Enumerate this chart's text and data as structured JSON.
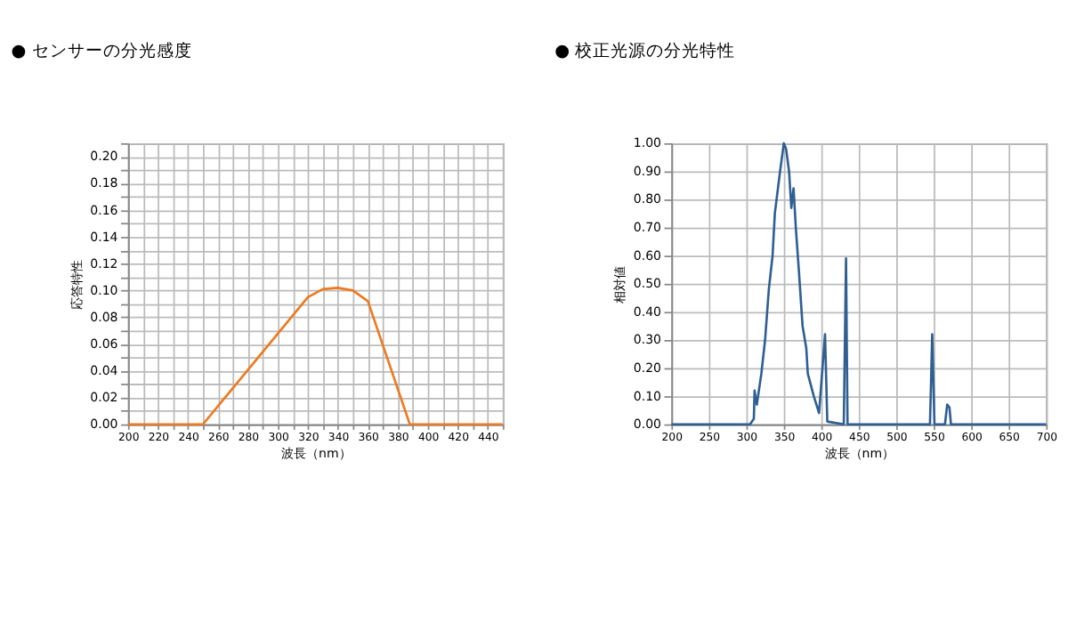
{
  "chart_data": [
    {
      "type": "line",
      "title": "● センサーの分光感度",
      "xlabel": "波長（nm）",
      "ylabel": "応答特性",
      "color": "#ee7a1f",
      "x": [
        200,
        250,
        320,
        330,
        340,
        350,
        360,
        388,
        450
      ],
      "values": [
        0,
        0,
        0.095,
        0.101,
        0.102,
        0.1,
        0.092,
        0,
        0
      ],
      "xlim": [
        200,
        450
      ],
      "ylim": [
        0,
        0.21
      ],
      "xticks": [
        200,
        {
          "value": 210,
          "label": null
        },
        220,
        {
          "value": 230,
          "label": null
        },
        240,
        {
          "value": 250,
          "label": null
        },
        260,
        {
          "value": 270,
          "label": null
        },
        280,
        {
          "value": 290,
          "label": null
        },
        300,
        {
          "value": 310,
          "label": null
        },
        320,
        {
          "value": 330,
          "label": null
        },
        340,
        {
          "value": 350,
          "label": null
        },
        360,
        {
          "value": 370,
          "label": null
        },
        380,
        {
          "value": 390,
          "label": null
        },
        400,
        {
          "value": 410,
          "label": null
        },
        420,
        {
          "value": 430,
          "label": null
        },
        440,
        {
          "value": 450,
          "label": null
        }
      ],
      "yticks": [
        {
          "value": 0,
          "label": "0.00"
        },
        {
          "value": 0.01,
          "label": null
        },
        {
          "value": 0.02,
          "label": "0.02"
        },
        {
          "value": 0.03,
          "label": null
        },
        {
          "value": 0.04,
          "label": "0.04"
        },
        {
          "value": 0.05,
          "label": null
        },
        {
          "value": 0.06,
          "label": "0.06"
        },
        {
          "value": 0.07,
          "label": null
        },
        {
          "value": 0.08,
          "label": "0.08"
        },
        {
          "value": 0.09,
          "label": null
        },
        {
          "value": 0.1,
          "label": "0.10"
        },
        {
          "value": 0.11,
          "label": null
        },
        {
          "value": 0.12,
          "label": "0.12"
        },
        {
          "value": 0.13,
          "label": null
        },
        {
          "value": 0.14,
          "label": "0.14"
        },
        {
          "value": 0.15,
          "label": null
        },
        {
          "value": 0.16,
          "label": "0.16"
        },
        {
          "value": 0.17,
          "label": null
        },
        {
          "value": 0.18,
          "label": "0.18"
        },
        {
          "value": 0.19,
          "label": null
        },
        {
          "value": 0.2,
          "label": "0.20"
        },
        {
          "value": 0.21,
          "label": null
        }
      ],
      "grid": true
    },
    {
      "type": "line",
      "title": "● 校正光源の分光特性",
      "xlabel": "波長（nm）",
      "ylabel": "相対値",
      "color": "#2f5f93",
      "x": [
        200,
        305,
        310,
        311,
        314,
        320,
        325,
        330,
        335,
        338,
        345,
        350,
        353,
        357,
        360,
        363,
        366,
        370,
        375,
        380,
        382,
        390,
        397,
        405,
        408,
        430,
        433,
        435,
        450,
        545,
        548,
        551,
        565,
        568,
        571,
        573,
        700
      ],
      "values": [
        0,
        0,
        0.02,
        0.12,
        0.07,
        0.18,
        0.3,
        0.48,
        0.6,
        0.75,
        0.9,
        1.0,
        0.98,
        0.9,
        0.77,
        0.84,
        0.7,
        0.55,
        0.35,
        0.27,
        0.18,
        0.1,
        0.04,
        0.32,
        0.01,
        0,
        0.59,
        0,
        0,
        0,
        0.32,
        0,
        0,
        0.07,
        0.06,
        0,
        0
      ],
      "xlim": [
        200,
        700
      ],
      "ylim": [
        0,
        1.0
      ],
      "xticks": [
        200,
        250,
        300,
        350,
        400,
        450,
        500,
        550,
        600,
        650,
        700
      ],
      "yticks": [
        {
          "value": 0,
          "label": "0.00"
        },
        {
          "value": 0.1,
          "label": "0.10"
        },
        {
          "value": 0.2,
          "label": "0.20"
        },
        {
          "value": 0.3,
          "label": "0.30"
        },
        {
          "value": 0.4,
          "label": "0.40"
        },
        {
          "value": 0.5,
          "label": "0.50"
        },
        {
          "value": 0.6,
          "label": "0.60"
        },
        {
          "value": 0.7,
          "label": "0.70"
        },
        {
          "value": 0.8,
          "label": "0.80"
        },
        {
          "value": 0.9,
          "label": "0.90"
        },
        {
          "value": 1.0,
          "label": "1.00"
        }
      ],
      "grid": true
    }
  ]
}
